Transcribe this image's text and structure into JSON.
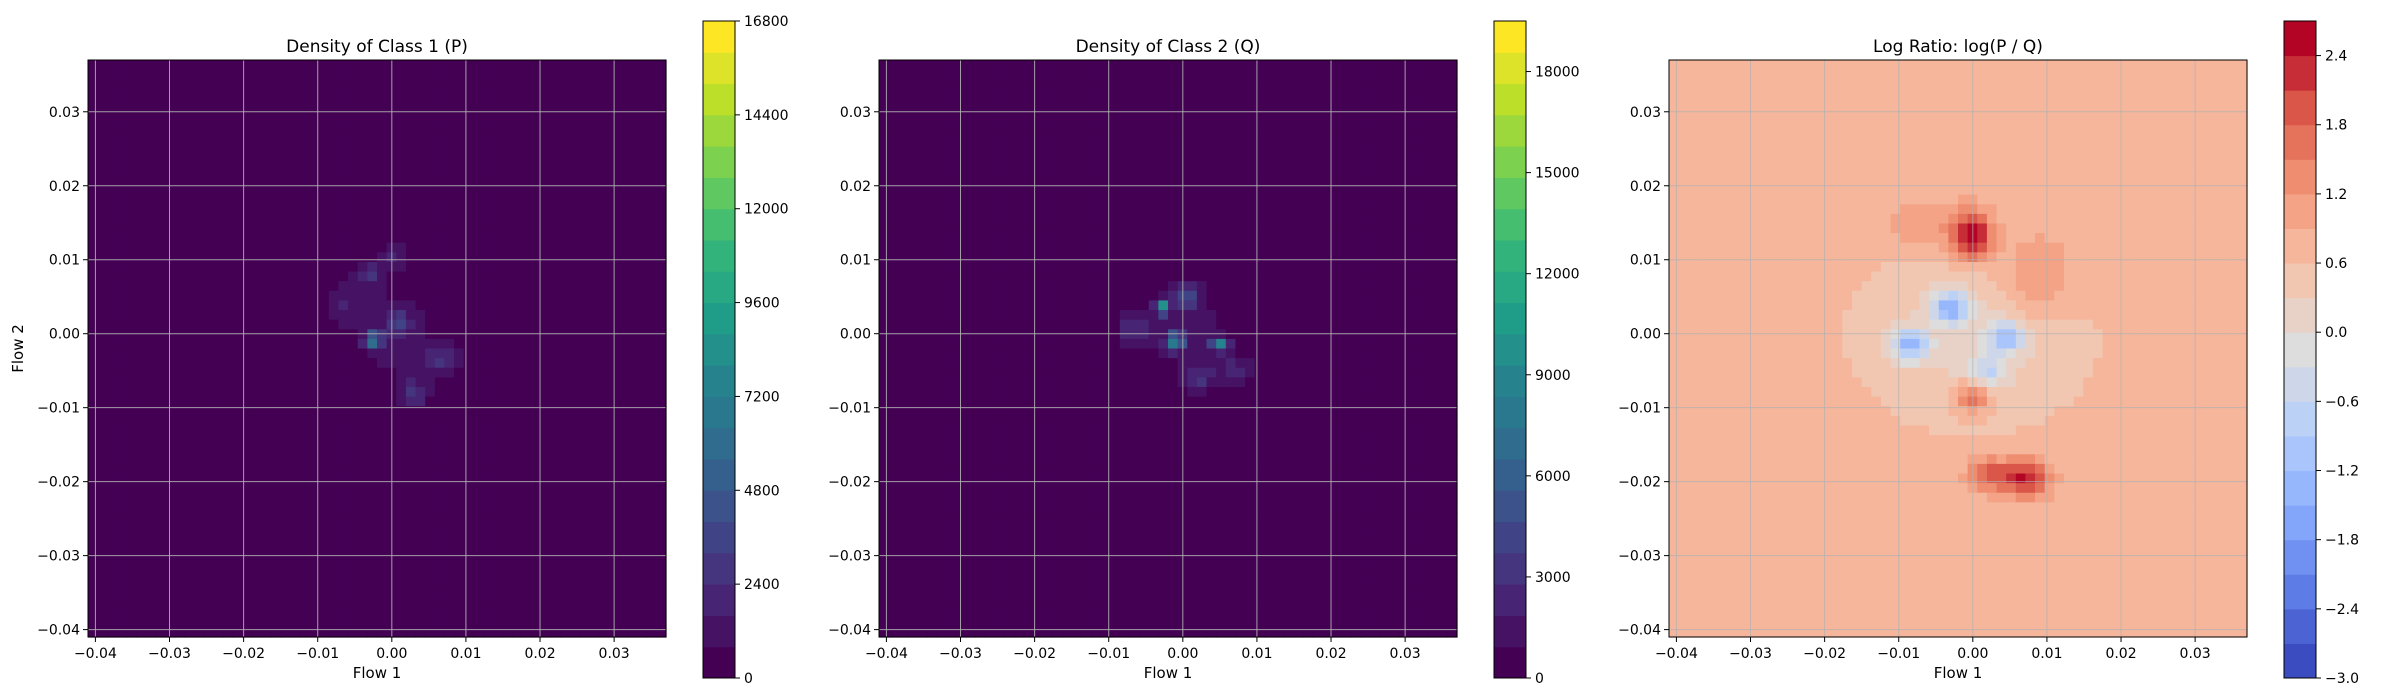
{
  "chart_data": [
    {
      "type": "heatmap",
      "title": "Density of Class 1 (P)",
      "xlabel": "Flow 1",
      "ylabel": "Flow 2",
      "xlim": [
        -0.041,
        0.037
      ],
      "ylim": [
        -0.041,
        0.037
      ],
      "xticks": [
        -0.04,
        -0.03,
        -0.02,
        -0.01,
        0.0,
        0.01,
        0.02,
        0.03
      ],
      "yticks": [
        -0.04,
        -0.03,
        -0.02,
        -0.01,
        0.0,
        0.01,
        0.02,
        0.03
      ],
      "xtick_labels": [
        "−0.04",
        "−0.03",
        "−0.02",
        "−0.01",
        "0.00",
        "0.01",
        "0.02",
        "0.03"
      ],
      "ytick_labels": [
        "−0.04",
        "−0.03",
        "−0.02",
        "−0.01",
        "0.00",
        "0.01",
        "0.02",
        "0.03"
      ],
      "grid": true,
      "colormap": "viridis",
      "colorbar": {
        "min": 0,
        "max": 16800,
        "ticks": [
          0,
          2400,
          4800,
          7200,
          9600,
          12000,
          14400,
          16800
        ],
        "tick_labels": [
          "0",
          "2400",
          "4800",
          "7200",
          "9600",
          "12000",
          "14400",
          "16800"
        ],
        "levels": 21,
        "vmax": 16800
      },
      "background_value": 0,
      "blobs": [
        {
          "x": 0.0,
          "y": 0.0,
          "sx": 0.0075,
          "sy": 0.009,
          "amp": 900
        },
        {
          "x": -0.0025,
          "y": -0.0008,
          "sx": 0.0008,
          "sy": 0.0006,
          "amp": 8500
        },
        {
          "x": 0.001,
          "y": 0.0015,
          "sx": 0.0012,
          "sy": 0.0012,
          "amp": 2500
        },
        {
          "x": -0.003,
          "y": 0.008,
          "sx": 0.0012,
          "sy": 0.0012,
          "amp": 2000
        },
        {
          "x": 0.0005,
          "y": 0.011,
          "sx": 0.001,
          "sy": 0.0012,
          "amp": 1600
        },
        {
          "x": 0.0065,
          "y": -0.0035,
          "sx": 0.0015,
          "sy": 0.0012,
          "amp": 2200
        },
        {
          "x": 0.003,
          "y": -0.008,
          "sx": 0.0012,
          "sy": 0.0012,
          "amp": 2400
        },
        {
          "x": -0.0065,
          "y": 0.004,
          "sx": 0.0015,
          "sy": 0.0015,
          "amp": 1200
        }
      ]
    },
    {
      "type": "heatmap",
      "title": "Density of Class 2 (Q)",
      "xlabel": "Flow 1",
      "ylabel": "",
      "xlim": [
        -0.041,
        0.037
      ],
      "ylim": [
        -0.041,
        0.037
      ],
      "xticks": [
        -0.04,
        -0.03,
        -0.02,
        -0.01,
        0.0,
        0.01,
        0.02,
        0.03
      ],
      "yticks": [
        -0.04,
        -0.03,
        -0.02,
        -0.01,
        0.0,
        0.01,
        0.02,
        0.03
      ],
      "xtick_labels": [
        "−0.04",
        "−0.03",
        "−0.02",
        "−0.01",
        "0.00",
        "0.01",
        "0.02",
        "0.03"
      ],
      "ytick_labels": [
        "−0.04",
        "−0.03",
        "−0.02",
        "−0.01",
        "0.00",
        "0.01",
        "0.02",
        "0.03"
      ],
      "grid": true,
      "colormap": "viridis",
      "colorbar": {
        "min": 0,
        "max": 19500,
        "ticks": [
          0,
          3000,
          6000,
          9000,
          12000,
          15000,
          18000
        ],
        "tick_labels": [
          "0",
          "3000",
          "6000",
          "9000",
          "12000",
          "15000",
          "18000"
        ],
        "levels": 21,
        "vmax": 19500
      },
      "background_value": 0,
      "blobs": [
        {
          "x": 0.0005,
          "y": 0.0005,
          "sx": 0.0075,
          "sy": 0.0065,
          "amp": 1100
        },
        {
          "x": -0.0028,
          "y": 0.0035,
          "sx": 0.0006,
          "sy": 0.0006,
          "amp": 10500
        },
        {
          "x": -0.001,
          "y": -0.001,
          "sx": 0.0008,
          "sy": 0.0008,
          "amp": 8500
        },
        {
          "x": 0.005,
          "y": -0.0015,
          "sx": 0.0008,
          "sy": 0.0006,
          "amp": 8000
        },
        {
          "x": 0.0005,
          "y": 0.005,
          "sx": 0.0012,
          "sy": 0.0012,
          "amp": 4000
        },
        {
          "x": -0.0065,
          "y": 0.0005,
          "sx": 0.0015,
          "sy": 0.0015,
          "amp": 2200
        },
        {
          "x": 0.002,
          "y": -0.006,
          "sx": 0.0015,
          "sy": 0.0012,
          "amp": 2600
        },
        {
          "x": 0.007,
          "y": -0.005,
          "sx": 0.0015,
          "sy": 0.0012,
          "amp": 2000
        }
      ]
    },
    {
      "type": "heatmap",
      "title": "Log Ratio: log(P / Q)",
      "xlabel": "Flow 1",
      "ylabel": "",
      "xlim": [
        -0.041,
        0.037
      ],
      "ylim": [
        -0.041,
        0.037
      ],
      "xticks": [
        -0.04,
        -0.03,
        -0.02,
        -0.01,
        0.0,
        0.01,
        0.02,
        0.03
      ],
      "yticks": [
        -0.04,
        -0.03,
        -0.02,
        -0.01,
        0.0,
        0.01,
        0.02,
        0.03
      ],
      "xtick_labels": [
        "−0.04",
        "−0.03",
        "−0.02",
        "−0.01",
        "0.00",
        "0.01",
        "0.02",
        "0.03"
      ],
      "ytick_labels": [
        "−0.04",
        "−0.03",
        "−0.02",
        "−0.01",
        "0.00",
        "0.01",
        "0.02",
        "0.03"
      ],
      "grid": true,
      "colormap": "coolwarm",
      "colorbar": {
        "min": -3.0,
        "max": 2.7,
        "ticks": [
          -3.0,
          -2.4,
          -1.8,
          -1.2,
          -0.6,
          0.0,
          0.6,
          1.2,
          1.8,
          2.4
        ],
        "tick_labels": [
          "−3.0",
          "−2.4",
          "−1.8",
          "−1.2",
          "−0.6",
          "0.0",
          "0.6",
          "1.2",
          "1.8",
          "2.4"
        ],
        "levels": 19,
        "vmin": -3.0,
        "vmax": 2.7
      },
      "background_value": 0.5,
      "blobs": [
        {
          "x": 0.0,
          "y": 0.0,
          "sx": 0.011,
          "sy": 0.009,
          "amp": -0.6
        },
        {
          "x": 0.0,
          "y": 0.0,
          "sx": 0.04,
          "sy": 0.04,
          "amp": 0.3
        },
        {
          "x": 0.0,
          "y": 0.013,
          "sx": 0.0018,
          "sy": 0.0022,
          "amp": 2.0
        },
        {
          "x": 0.0,
          "y": -0.0085,
          "sx": 0.0015,
          "sy": 0.0015,
          "amp": 1.3
        },
        {
          "x": 0.007,
          "y": -0.0195,
          "sx": 0.0022,
          "sy": 0.0018,
          "amp": 1.7
        },
        {
          "x": 0.002,
          "y": -0.019,
          "sx": 0.0018,
          "sy": 0.0015,
          "amp": 1.2
        },
        {
          "x": 0.0085,
          "y": 0.0075,
          "sx": 0.0035,
          "sy": 0.004,
          "amp": 0.7
        },
        {
          "x": -0.0055,
          "y": 0.0145,
          "sx": 0.0045,
          "sy": 0.0025,
          "amp": 0.5
        },
        {
          "x": -0.0085,
          "y": -0.0015,
          "sx": 0.0018,
          "sy": 0.0015,
          "amp": -1.7
        },
        {
          "x": -0.003,
          "y": 0.0035,
          "sx": 0.0018,
          "sy": 0.0015,
          "amp": -1.8
        },
        {
          "x": 0.0045,
          "y": -0.0005,
          "sx": 0.0018,
          "sy": 0.0015,
          "amp": -1.5
        },
        {
          "x": 0.002,
          "y": -0.005,
          "sx": 0.0018,
          "sy": 0.0015,
          "amp": -1.0
        }
      ]
    }
  ]
}
